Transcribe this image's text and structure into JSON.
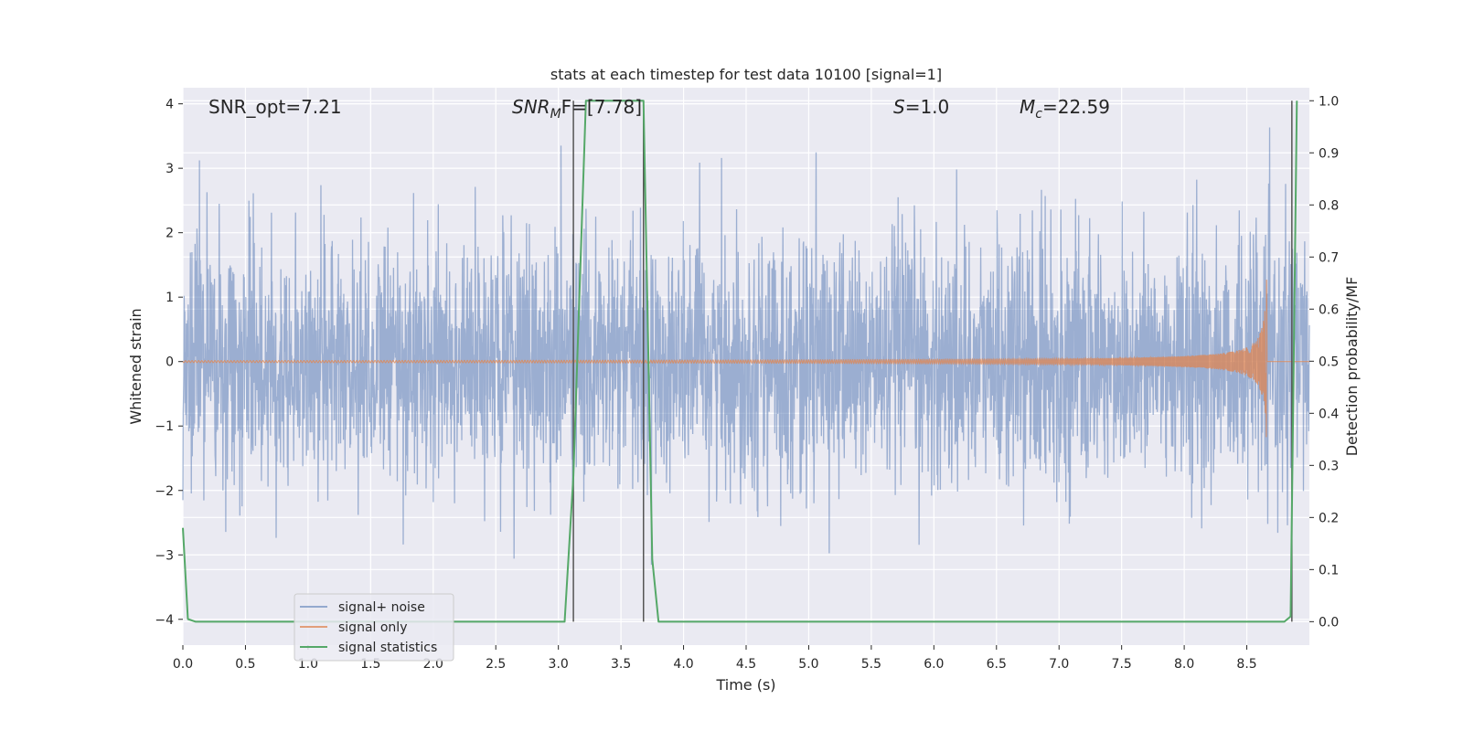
{
  "chart_data": {
    "type": "line",
    "title": "stats at each timestep for test data 10100 [signal=1]",
    "xlabel": "Time (s)",
    "ylabel": "Whitened strain",
    "y2label": "Detection probability/MF",
    "xlim": [
      0.0,
      9.0
    ],
    "ylim": [
      -4.4,
      4.25
    ],
    "y2lim": [
      -0.045,
      1.025
    ],
    "xticks": [
      "0.0",
      "0.5",
      "1.0",
      "1.5",
      "2.0",
      "2.5",
      "3.0",
      "3.5",
      "4.0",
      "4.5",
      "5.0",
      "5.5",
      "6.0",
      "6.5",
      "7.0",
      "7.5",
      "8.0",
      "8.5"
    ],
    "xtick_values": [
      0.0,
      0.5,
      1.0,
      1.5,
      2.0,
      2.5,
      3.0,
      3.5,
      4.0,
      4.5,
      5.0,
      5.5,
      6.0,
      6.5,
      7.0,
      7.5,
      8.0,
      8.5
    ],
    "yticks": [
      "4",
      "3",
      "2",
      "1",
      "0",
      "−1",
      "−2",
      "−3",
      "−4"
    ],
    "ytick_values": [
      4,
      3,
      2,
      1,
      0,
      -1,
      -2,
      -3,
      -4
    ],
    "y2ticks": [
      "1.0",
      "0.9",
      "0.8",
      "0.7",
      "0.6",
      "0.5",
      "0.4",
      "0.3",
      "0.2",
      "0.1",
      "0.0"
    ],
    "y2tick_values": [
      1.0,
      0.9,
      0.8,
      0.7,
      0.6,
      0.5,
      0.4,
      0.3,
      0.2,
      0.1,
      0.0
    ],
    "grid": true,
    "legend_placement": "lower-left",
    "annotations": {
      "snr_opt": "SNR_opt=7.21",
      "snr_mf_main": "SNR",
      "snr_mf_sub": "M",
      "snr_mf_rest": "F=[7.78]",
      "s_main": "S",
      "s_rest": "=1.0",
      "mc_main": "M",
      "mc_sub": "c",
      "mc_rest": "=22.59"
    },
    "vertical_lines": [
      3.12,
      3.68,
      8.86
    ],
    "series": [
      {
        "name": "signal+ noise",
        "color": "#4c72b0",
        "axis": "left",
        "kind": "noise",
        "approx_std": 0.95,
        "x_range": [
          0.0,
          9.0
        ]
      },
      {
        "name": "signal only",
        "color": "#dd8452",
        "axis": "left",
        "kind": "chirp",
        "coalescence_time": 8.66,
        "peak_amplitude": 1.45
      },
      {
        "name": "signal statistics",
        "color": "#55a868",
        "axis": "right",
        "x": [
          0.0,
          0.04,
          0.1,
          3.05,
          3.12,
          3.22,
          3.68,
          3.75,
          3.8,
          8.8,
          8.85,
          8.9
        ],
        "values": [
          0.18,
          0.005,
          0.0,
          0.0,
          0.28,
          1.0,
          1.0,
          0.12,
          0.0,
          0.0,
          0.01,
          1.0
        ]
      }
    ]
  }
}
